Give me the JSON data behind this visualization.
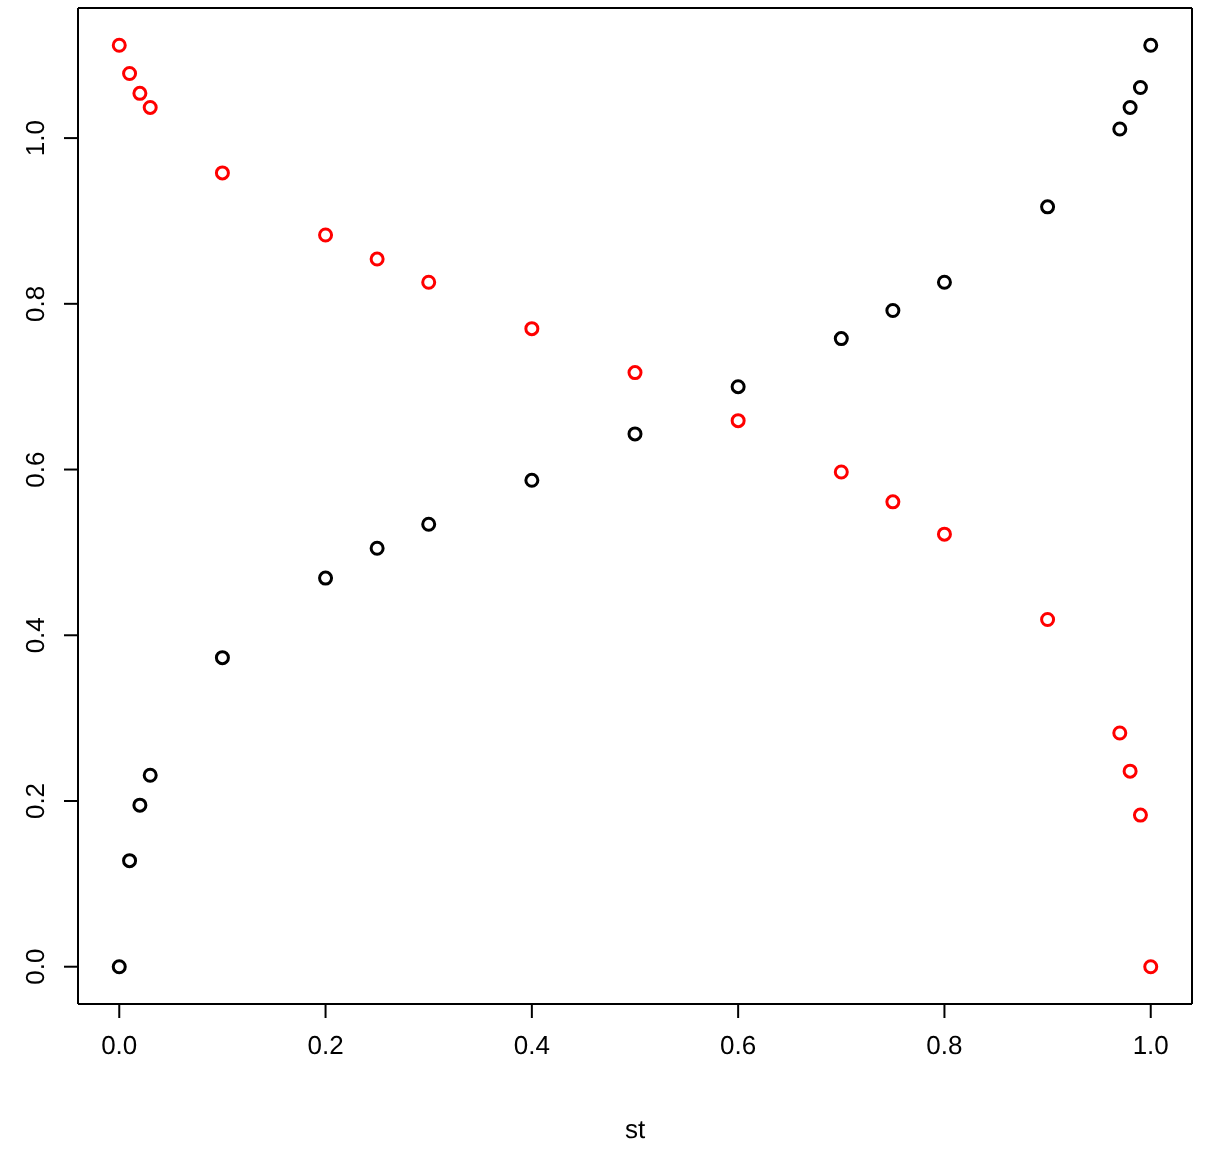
{
  "chart_data": {
    "type": "scatter",
    "xlabel": "st",
    "x": [
      0,
      0.01,
      0.02,
      0.03,
      0.1,
      0.2,
      0.25,
      0.3,
      0.4,
      0.5,
      0.6,
      0.7,
      0.75,
      0.8,
      0.9,
      0.97,
      0.98,
      0.99,
      1.0
    ],
    "series": [
      {
        "color": "#000000",
        "values": [
          0,
          0.128,
          0.195,
          0.231,
          0.373,
          0.469,
          0.505,
          0.534,
          0.587,
          0.643,
          0.7,
          0.758,
          0.792,
          0.826,
          0.917,
          1.011,
          1.037,
          1.061,
          1.112
        ]
      },
      {
        "color": "#ff0000",
        "values": [
          1.112,
          1.078,
          1.054,
          1.037,
          0.958,
          0.883,
          0.854,
          0.826,
          0.77,
          0.717,
          0.659,
          0.597,
          0.561,
          0.522,
          0.419,
          0.282,
          0.236,
          0.183,
          0
        ]
      }
    ],
    "xlim": [
      -0.04,
      1.04
    ],
    "ylim": [
      -0.045,
      1.157
    ],
    "xticks": [
      {
        "value": 0,
        "label": "0.0"
      },
      0.2,
      0.4,
      0.6,
      0.8,
      {
        "value": 1,
        "label": "1.0"
      }
    ],
    "yticks": [
      {
        "value": 0,
        "label": "0.0"
      },
      0.2,
      0.4,
      0.6,
      0.8,
      {
        "value": 1,
        "label": "1.0"
      }
    ],
    "marker": "circle"
  }
}
